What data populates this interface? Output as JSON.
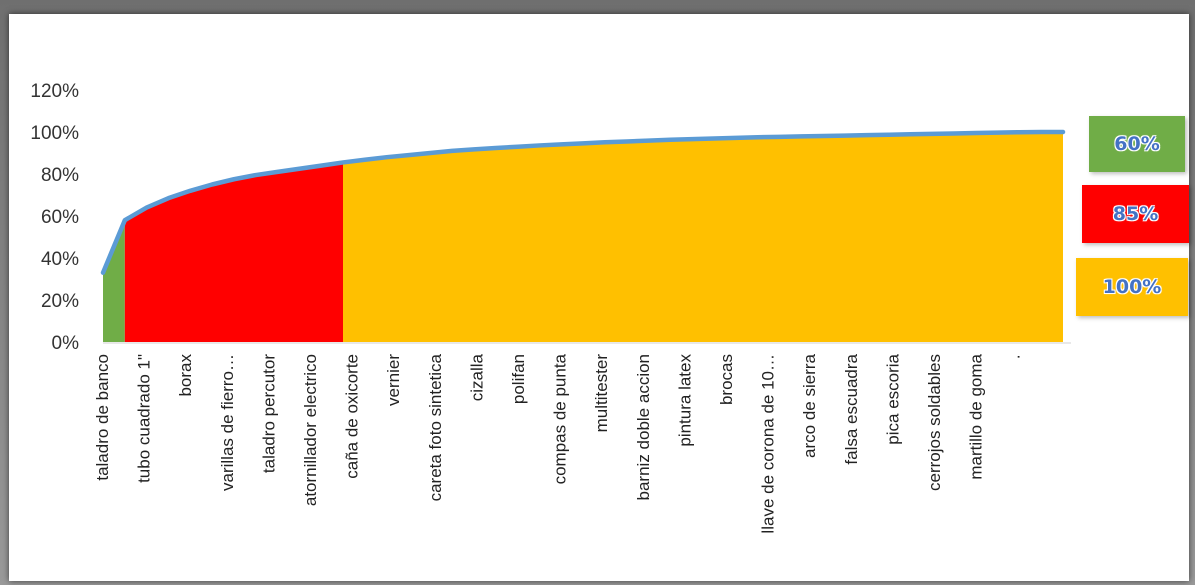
{
  "chart_data": {
    "type": "area",
    "title": "",
    "xlabel": "",
    "ylabel": "",
    "ylim": [
      0,
      1.2
    ],
    "y_ticks": [
      "0%",
      "20%",
      "40%",
      "60%",
      "80%",
      "100%",
      "120%"
    ],
    "grid": false,
    "x_labels": [
      "taladro de banco",
      "tubo cuadrado 1\"",
      "borax",
      "varillas de fierro…",
      "taladro percutor",
      "atornillador electrico",
      "caña de oxicorte",
      "vernier",
      "careta foto sintetica",
      "cizalla",
      "polifan",
      "compas de punta",
      "multitester",
      "barniz doble accion",
      "pintura latex",
      "brocas",
      "llave de corona de 10…",
      "arco de sierra",
      "falsa escuadra",
      "pica escoria",
      "cerrojos soldables",
      "martillo de goma",
      "·"
    ],
    "cumulative_percent": [
      0.33,
      0.58,
      0.64,
      0.685,
      0.72,
      0.75,
      0.775,
      0.795,
      0.81,
      0.825,
      0.84,
      0.855,
      0.868,
      0.88,
      0.89,
      0.9,
      0.91,
      0.917,
      0.924,
      0.93,
      0.936,
      0.941,
      0.946,
      0.951,
      0.955,
      0.959,
      0.963,
      0.966,
      0.969,
      0.972,
      0.975,
      0.977,
      0.979,
      0.981,
      0.983,
      0.985,
      0.987,
      0.989,
      0.991,
      0.993,
      0.995,
      0.997,
      0.999,
      1.0,
      1.0
    ],
    "zones": [
      {
        "label": "60%",
        "end_index": 1,
        "color": "#70ad47"
      },
      {
        "label": "85%",
        "end_index": 11,
        "color": "#ff0000"
      },
      {
        "label": "100%",
        "end_index": 44,
        "color": "#ffc000"
      }
    ],
    "line_color": "#5b9bd5"
  }
}
